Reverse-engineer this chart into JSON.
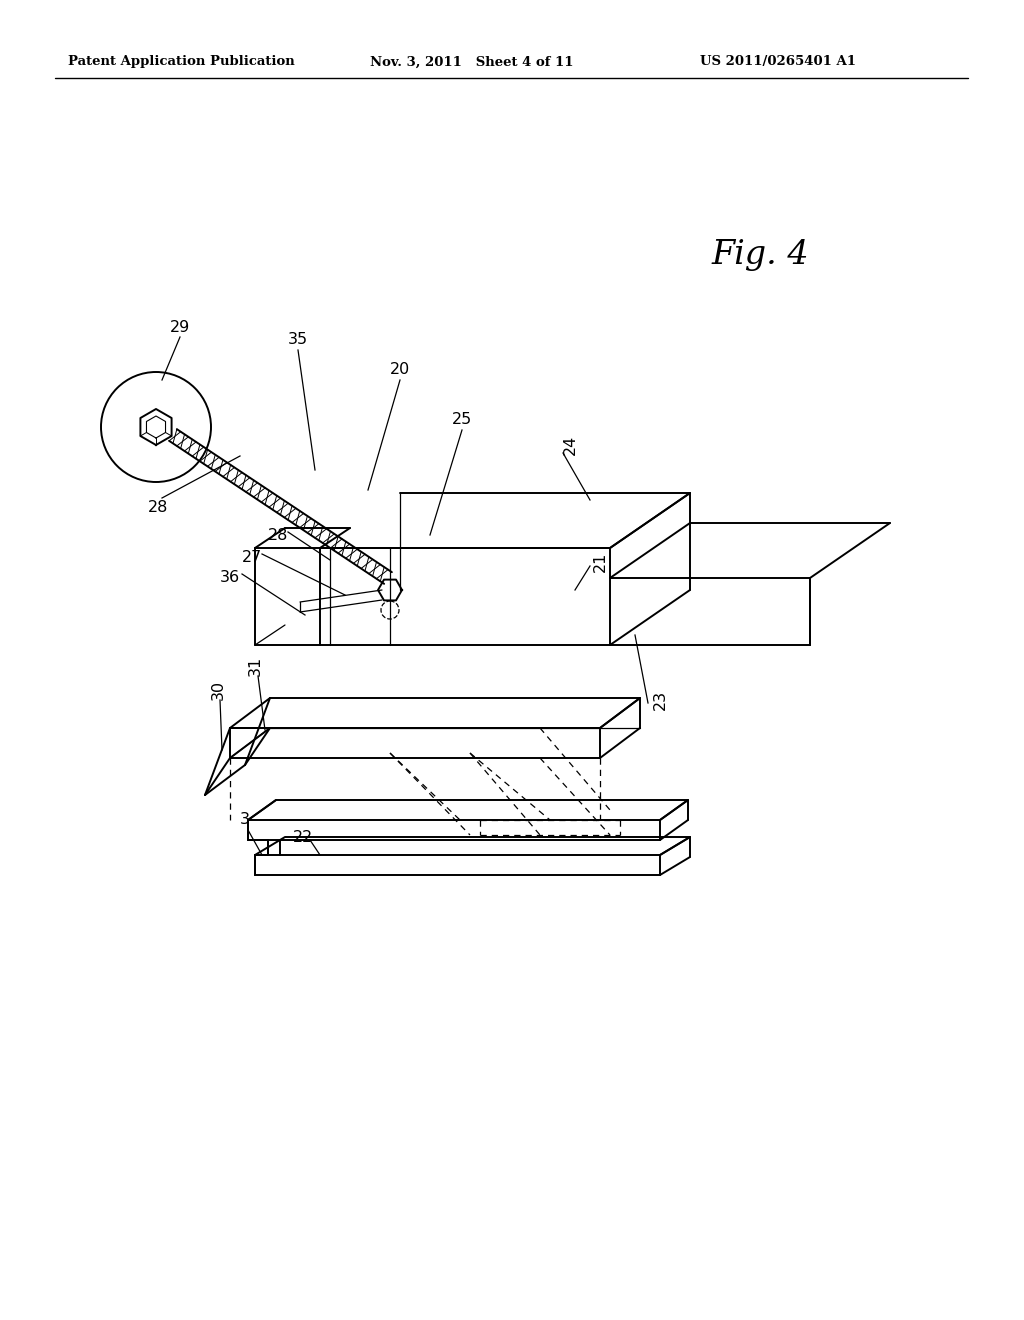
{
  "bg_color": "#ffffff",
  "header_left": "Patent Application Publication",
  "header_mid": "Nov. 3, 2011   Sheet 4 of 11",
  "header_right": "US 2011/0265401 A1",
  "fig_label": "Fig. 4",
  "line_color": "#000000",
  "lw_main": 1.4,
  "lw_thin": 0.9,
  "label_fontsize": 11.5,
  "header_fontsize": 9.5,
  "fig_label_fontsize": 24
}
